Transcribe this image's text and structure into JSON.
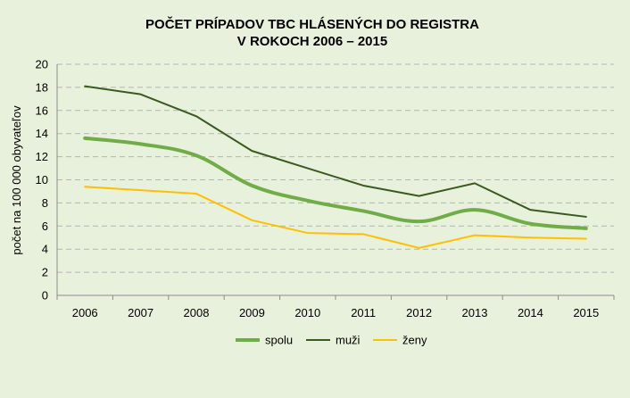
{
  "chart_data": {
    "type": "line",
    "title_line1": "POČET PRÍPADOV TBC HLÁSENÝCH DO REGISTRA",
    "title_line2": "V ROKOCH 2006 – 2015",
    "xlabel": "",
    "ylabel": "počet na 100 000 obyvateľov",
    "categories": [
      "2006",
      "2007",
      "2008",
      "2009",
      "2010",
      "2011",
      "2012",
      "2013",
      "2014",
      "2015"
    ],
    "ylim": [
      0,
      20
    ],
    "yticks": [
      0,
      2,
      4,
      6,
      8,
      10,
      12,
      14,
      16,
      18,
      20
    ],
    "grid": true,
    "legend_position": "bottom",
    "series": [
      {
        "name": "spolu",
        "color": "#70ad47",
        "values": [
          13.6,
          13.1,
          12.1,
          9.5,
          8.2,
          7.3,
          6.4,
          7.4,
          6.2,
          5.8
        ]
      },
      {
        "name": "muži",
        "color": "#3a5a1f",
        "values": [
          18.1,
          17.4,
          15.5,
          12.5,
          11.0,
          9.5,
          8.6,
          9.7,
          7.4,
          6.8
        ]
      },
      {
        "name": "ženy",
        "color": "#ffc000",
        "values": [
          9.4,
          9.1,
          8.8,
          6.5,
          5.4,
          5.3,
          4.1,
          5.2,
          5.0,
          4.9
        ]
      }
    ]
  }
}
